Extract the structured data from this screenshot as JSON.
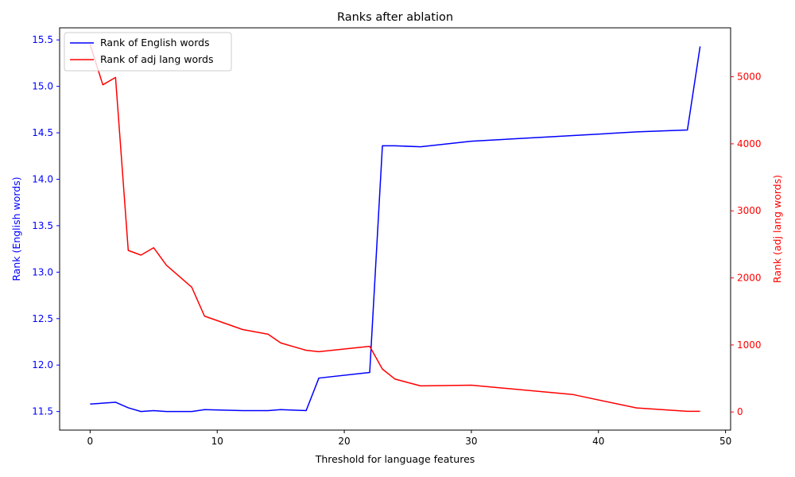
{
  "chart_data": {
    "type": "line",
    "title": "Ranks after ablation",
    "xlabel": "Threshold for language features",
    "ylabel_left": "Rank (English words)",
    "ylabel_right": "Rank (adj lang words)",
    "xlim": [
      -2.4,
      50.4
    ],
    "ylim_left": [
      11.3,
      15.63
    ],
    "ylim_right": [
      -270,
      5730
    ],
    "x_ticks": [
      0,
      10,
      20,
      30,
      40,
      50
    ],
    "x_tick_labels": [
      "0",
      "10",
      "20",
      "30",
      "40",
      "50"
    ],
    "y_left_ticks": [
      11.5,
      12.0,
      12.5,
      13.0,
      13.5,
      14.0,
      14.5,
      15.0,
      15.5
    ],
    "y_left_tick_labels": [
      "11.5",
      "12.0",
      "12.5",
      "13.0",
      "13.5",
      "14.0",
      "14.5",
      "15.0",
      "15.5"
    ],
    "y_right_ticks": [
      0,
      1000,
      2000,
      3000,
      4000,
      5000
    ],
    "y_right_tick_labels": [
      "0",
      "1000",
      "2000",
      "3000",
      "4000",
      "5000"
    ],
    "legend_position": "top-left",
    "grid": false,
    "series": [
      {
        "name": "Rank of English words",
        "axis": "left",
        "color": "#0000ff",
        "points": [
          [
            0,
            11.58
          ],
          [
            2,
            11.6
          ],
          [
            3,
            11.54
          ],
          [
            4,
            11.5
          ],
          [
            5,
            11.51
          ],
          [
            6,
            11.5
          ],
          [
            8,
            11.5
          ],
          [
            9,
            11.52
          ],
          [
            12,
            11.51
          ],
          [
            14,
            11.51
          ],
          [
            15,
            11.52
          ],
          [
            17,
            11.51
          ],
          [
            18,
            11.86
          ],
          [
            22,
            11.92
          ],
          [
            23,
            14.36
          ],
          [
            24,
            14.36
          ],
          [
            26,
            14.35
          ],
          [
            30,
            14.41
          ],
          [
            38,
            14.47
          ],
          [
            43,
            14.51
          ],
          [
            47,
            14.53
          ],
          [
            48,
            15.43
          ]
        ]
      },
      {
        "name": "Rank of adj lang words",
        "axis": "right",
        "color": "#ff0000",
        "points": [
          [
            0,
            5480
          ],
          [
            1,
            4880
          ],
          [
            2,
            4990
          ],
          [
            3,
            2410
          ],
          [
            4,
            2340
          ],
          [
            5,
            2450
          ],
          [
            6,
            2190
          ],
          [
            8,
            1860
          ],
          [
            9,
            1430
          ],
          [
            12,
            1230
          ],
          [
            14,
            1160
          ],
          [
            15,
            1030
          ],
          [
            17,
            920
          ],
          [
            18,
            900
          ],
          [
            22,
            980
          ],
          [
            23,
            640
          ],
          [
            24,
            490
          ],
          [
            26,
            390
          ],
          [
            30,
            400
          ],
          [
            38,
            260
          ],
          [
            43,
            60
          ],
          [
            47,
            10
          ],
          [
            48,
            10
          ]
        ]
      }
    ]
  }
}
